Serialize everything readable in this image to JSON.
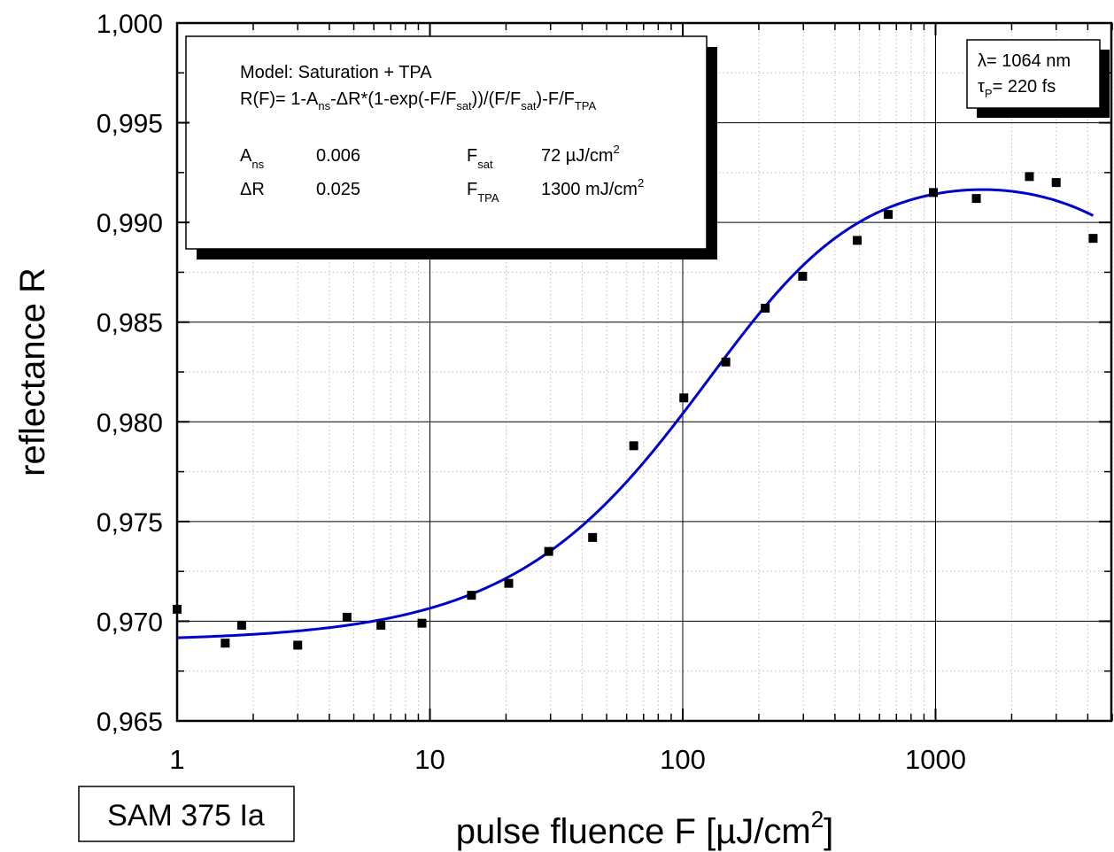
{
  "chart_data": {
    "type": "scatter",
    "title": "",
    "xlabel": "pulse fluence F [µJ/cm",
    "xlabel_sup": "2",
    "xlabel_end": "]",
    "ylabel": "reflectance R",
    "xscale": "log",
    "xlim": [
      1,
      5000
    ],
    "ylim": [
      0.965,
      1.0
    ],
    "x_ticks": [
      1,
      10,
      100,
      1000
    ],
    "x_tick_labels": [
      "1",
      "10",
      "100",
      "1000"
    ],
    "y_ticks": [
      0.965,
      0.97,
      0.975,
      0.98,
      0.985,
      0.99,
      0.995,
      1.0
    ],
    "y_tick_labels": [
      "0,965",
      "0,970",
      "0,975",
      "0,980",
      "0,985",
      "0,990",
      "0,995",
      "1,000"
    ],
    "grid": true,
    "series": [
      {
        "type": "scatter",
        "marker": "square",
        "color": "#000000",
        "x": [
          1.0,
          1.55,
          1.8,
          3.0,
          4.7,
          6.4,
          9.3,
          14.6,
          20.5,
          29.5,
          44,
          64,
          101,
          148,
          212,
          298,
          490,
          650,
          980,
          1450,
          2350,
          3000,
          4200
        ],
        "y": [
          0.9706,
          0.9689,
          0.9698,
          0.9688,
          0.9702,
          0.9698,
          0.9699,
          0.9713,
          0.9719,
          0.9735,
          0.9742,
          0.9788,
          0.9812,
          0.983,
          0.9857,
          0.9873,
          0.9891,
          0.9904,
          0.9915,
          0.9912,
          0.9923,
          0.992,
          0.9892
        ]
      },
      {
        "type": "line",
        "color": "#0000cc",
        "model": {
          "A_ns": 0.006,
          "dR": 0.025,
          "F_sat": 72,
          "F_TPA": 1300000
        },
        "x_range": [
          1,
          4200
        ]
      }
    ]
  },
  "fit_box": {
    "model_line": "Model: Saturation + TPA",
    "eq_parts": [
      "R(F)= 1-A",
      "ns",
      "-ΔR*(1-exp(-F/F",
      "sat",
      "))/(F/F",
      "sat",
      ")-F/F",
      "TPA"
    ],
    "params": [
      {
        "name": "A",
        "sub": "ns",
        "value": "0.006"
      },
      {
        "name": "ΔR",
        "sub": "",
        "value": "0.025"
      },
      {
        "name": "F",
        "sub": "sat",
        "value": "72 µJ/cm",
        "sup": "2"
      },
      {
        "name": "F",
        "sub": "TPA",
        "value": "1300 mJ/cm",
        "sup": "2"
      }
    ]
  },
  "info_box": {
    "lambda_text": "λ= 1064 nm",
    "tau_symbol": "τ",
    "tau_sub": "P",
    "tau_text": "= 220 fs"
  },
  "sample_label": "SAM 375 Ia",
  "colors": {
    "fit_line": "#0000cc",
    "markers": "#000000",
    "grid_major": "#000000",
    "grid_minor": "#bbbbbb"
  }
}
